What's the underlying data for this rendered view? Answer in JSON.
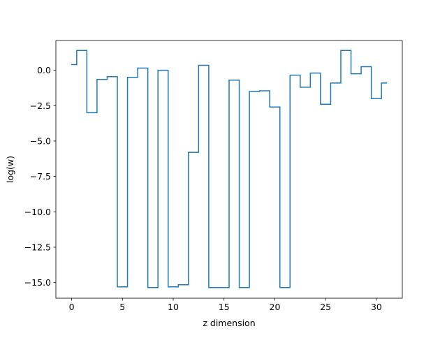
{
  "chart_data": {
    "type": "line",
    "drawstyle": "steps-mid",
    "title": "",
    "xlabel": "z dimension",
    "ylabel": "log(w)",
    "xlim": [
      -1.55,
      32.55
    ],
    "ylim": [
      -16.1,
      2.1
    ],
    "xticks": [
      0,
      5,
      10,
      15,
      20,
      25,
      30
    ],
    "xtick_labels": [
      "0",
      "5",
      "10",
      "15",
      "20",
      "25",
      "30"
    ],
    "yticks": [
      0.0,
      -2.5,
      -5.0,
      -7.5,
      -10.0,
      -12.5,
      -15.0
    ],
    "ytick_labels": [
      "0.0",
      "−2.5",
      "−5.0",
      "−7.5",
      "−10.0",
      "−12.5",
      "−15.0"
    ],
    "grid": false,
    "series": [
      {
        "color": "#1f77b4",
        "x": [
          0,
          1,
          2,
          3,
          4,
          5,
          6,
          7,
          8,
          9,
          10,
          11,
          12,
          13,
          14,
          15,
          16,
          17,
          18,
          19,
          20,
          21,
          22,
          23,
          24,
          25,
          26,
          27,
          28,
          29,
          30,
          31
        ],
        "values": [
          0.4,
          1.4,
          -3.0,
          -0.65,
          -0.45,
          -15.3,
          -0.5,
          0.15,
          -15.35,
          0.0,
          -15.3,
          -15.15,
          -5.8,
          0.35,
          -15.35,
          -15.35,
          -0.7,
          -15.35,
          -1.5,
          -1.45,
          -2.6,
          -15.35,
          -0.35,
          -1.2,
          -0.2,
          -2.4,
          -0.9,
          1.4,
          -0.25,
          0.25,
          -2.0,
          -0.9
        ]
      }
    ]
  }
}
